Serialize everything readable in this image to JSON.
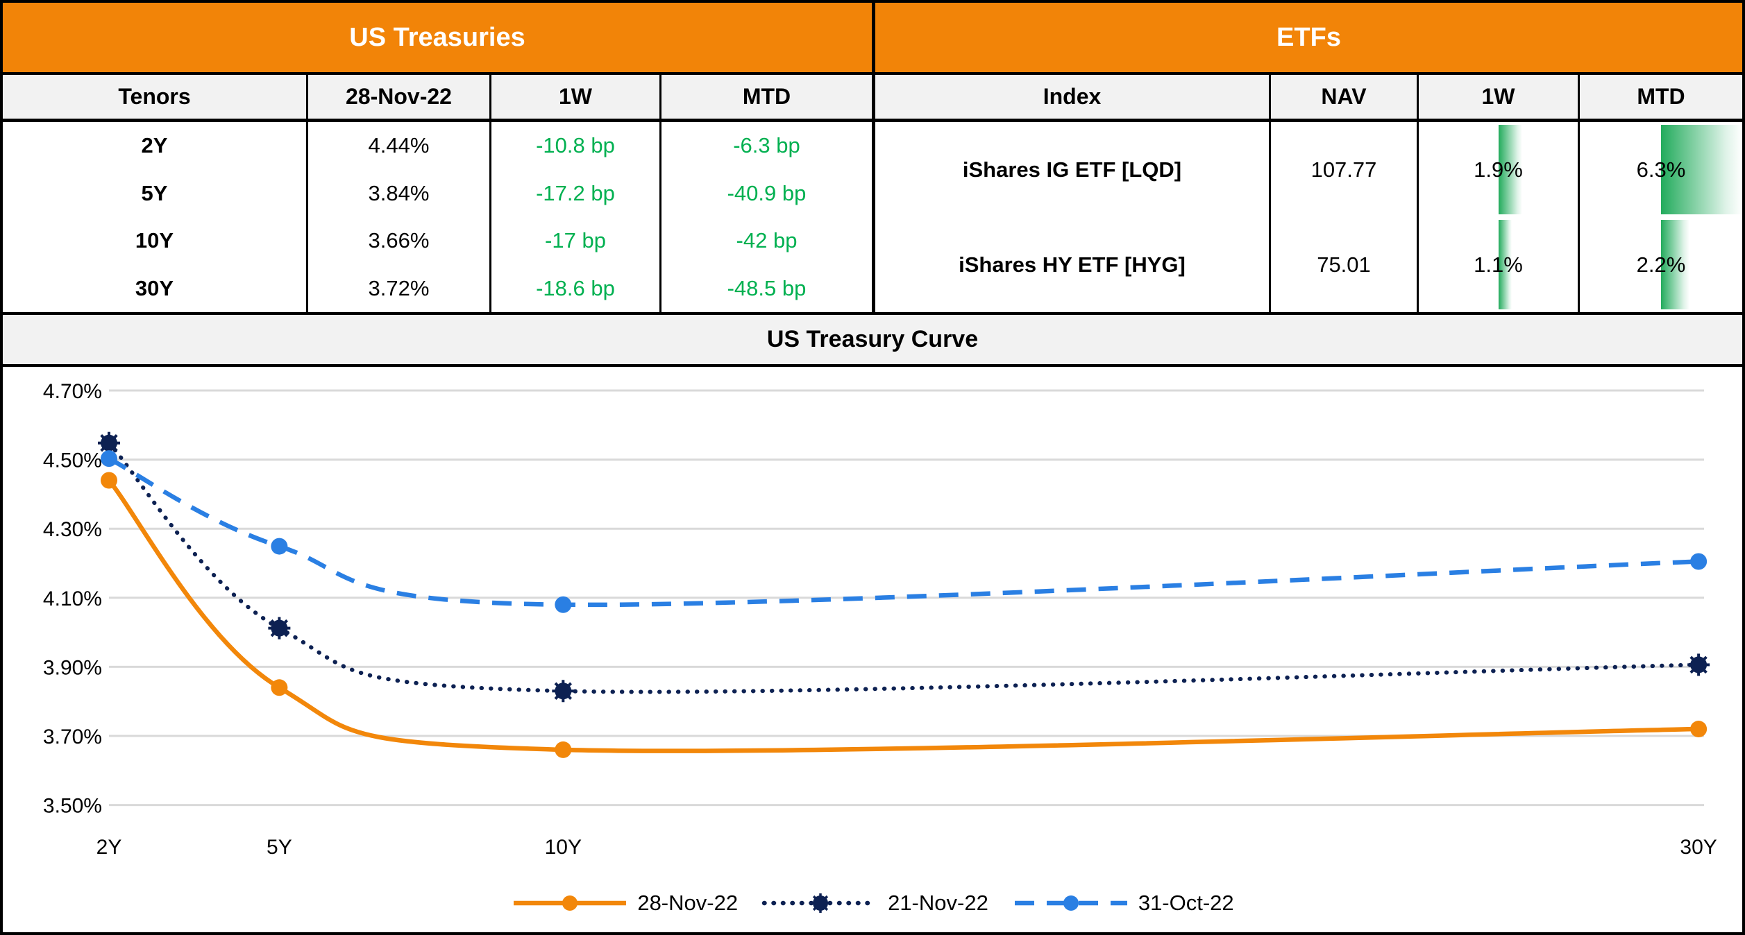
{
  "us_treasuries": {
    "title": "US Treasuries",
    "headers": {
      "tenor": "Tenors",
      "date": "28-Nov-22",
      "w1": "1W",
      "mtd": "MTD"
    },
    "rows": [
      {
        "tenor": "2Y",
        "yield": "4.44%",
        "w1": "-10.8 bp",
        "mtd": "-6.3 bp"
      },
      {
        "tenor": "5Y",
        "yield": "3.84%",
        "w1": "-17.2 bp",
        "mtd": "-40.9 bp"
      },
      {
        "tenor": "10Y",
        "yield": "3.66%",
        "w1": "-17 bp",
        "mtd": "-42 bp"
      },
      {
        "tenor": "30Y",
        "yield": "3.72%",
        "w1": "-18.6 bp",
        "mtd": "-48.5 bp"
      }
    ]
  },
  "etfs": {
    "title": "ETFs",
    "headers": {
      "index": "Index",
      "nav": "NAV",
      "w1": "1W",
      "mtd": "MTD"
    },
    "rows": [
      {
        "name": "iShares IG ETF [LQD]",
        "nav": "107.77",
        "w1": "1.9%",
        "w1_val": 1.9,
        "mtd": "6.3%",
        "mtd_val": 6.3
      },
      {
        "name": "iShares HY ETF [HYG]",
        "nav": "75.01",
        "w1": "1.1%",
        "w1_val": 1.1,
        "mtd": "2.2%",
        "mtd_val": 2.2
      }
    ]
  },
  "chart_data": {
    "type": "line",
    "title": "US Treasury Curve",
    "x": [
      2,
      5,
      10,
      30
    ],
    "x_tick_labels": [
      "2Y",
      "5Y",
      "10Y",
      "30Y"
    ],
    "y_tick_labels": [
      "4.70%",
      "4.50%",
      "4.30%",
      "4.10%",
      "3.90%",
      "3.70%",
      "3.50%"
    ],
    "ylim": [
      3.5,
      4.7
    ],
    "y_step": 0.2,
    "grid": true,
    "legend_position": "bottom",
    "series": [
      {
        "name": "28-Nov-22",
        "values": [
          4.44,
          3.84,
          3.66,
          3.72
        ],
        "color": "#F2870A",
        "line_style": "solid",
        "marker": "circle"
      },
      {
        "name": "21-Nov-22",
        "values": [
          4.548,
          4.012,
          3.83,
          3.906
        ],
        "color": "#0D2152",
        "line_style": "dotted",
        "marker": "spiked-circle"
      },
      {
        "name": "31-Oct-22",
        "values": [
          4.503,
          4.249,
          4.08,
          4.205
        ],
        "color": "#2A7FE3",
        "line_style": "dashed",
        "marker": "circle"
      }
    ]
  },
  "colors": {
    "banner_orange": "#F28408",
    "positive_green": "#00B050",
    "bar_green": "#22AB5C",
    "grid_grey": "#D9D9D9",
    "header_grey": "#F2F2F2"
  }
}
